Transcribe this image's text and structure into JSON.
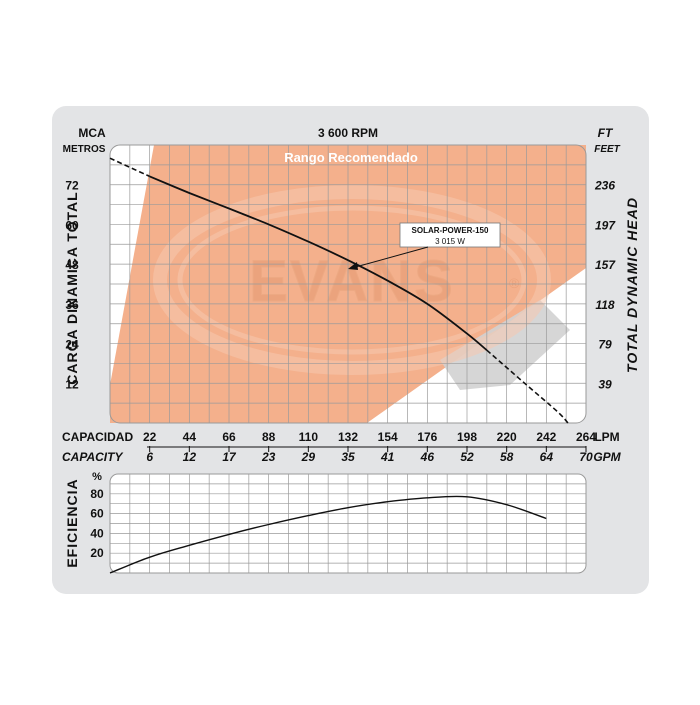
{
  "colors": {
    "panel": "#e3e4e6",
    "grid": "#9a9a9a",
    "recommended": "#f4b08c",
    "curve": "#111111",
    "logo": "#f0a37c"
  },
  "chart_data": [
    {
      "type": "line",
      "title": "3 600 RPM",
      "left_axis_unit": "MCA",
      "left_axis_unit_sub": "METROS",
      "right_axis_unit": "FT",
      "right_axis_unit_sub": "FEET",
      "ylabel_left": "CARGA DINAMICA TOTAL",
      "ylabel_right": "TOTAL DYNAMIC HEAD",
      "xlabel_top": "CAPACIDAD",
      "xlabel_top_unit": "LPM",
      "xlabel_bottom": "CAPACITY",
      "xlabel_bottom_unit": "GPM",
      "region_label": "Rango Recomendado",
      "watermark": "EVANS",
      "xlim": [
        0,
        264
      ],
      "ylim": [
        0,
        84
      ],
      "x_ticks_lpm": [
        "22",
        "44",
        "66",
        "88",
        "110",
        "132",
        "154",
        "176",
        "198",
        "220",
        "242",
        "264"
      ],
      "x_ticks_gpm": [
        "6",
        "12",
        "17",
        "23",
        "29",
        "35",
        "41",
        "46",
        "52",
        "58",
        "64",
        "70"
      ],
      "y_ticks_m": [
        "12",
        "24",
        "36",
        "48",
        "60",
        "72"
      ],
      "y_ticks_ft": [
        "39",
        "79",
        "118",
        "157",
        "197",
        "236"
      ],
      "series": [
        {
          "name": "SOLAR-POWER-150",
          "power_label": "3 015 W",
          "dashed_start": [
            [
              0,
              80
            ],
            [
              22,
              74.5
            ]
          ],
          "solid": [
            [
              22,
              74.5
            ],
            [
              44,
              69.5
            ],
            [
              66,
              64.8
            ],
            [
              88,
              60
            ],
            [
              110,
              54.8
            ],
            [
              132,
              49.2
            ],
            [
              154,
              43
            ],
            [
              176,
              36
            ],
            [
              198,
              27
            ],
            [
              209,
              22
            ]
          ],
          "dashed_end": [
            [
              209,
              22
            ],
            [
              230,
              12
            ],
            [
              248,
              3.5
            ],
            [
              254,
              0
            ]
          ]
        }
      ]
    },
    {
      "type": "line",
      "ylabel": "EFICIENCIA",
      "y_unit": "%",
      "y_ticks": [
        "20",
        "40",
        "60",
        "80"
      ],
      "ylim": [
        0,
        100
      ],
      "xlim": [
        0,
        264
      ],
      "series": [
        {
          "name": "Eficiencia",
          "points": [
            [
              0,
              0
            ],
            [
              22,
              16
            ],
            [
              44,
              28
            ],
            [
              66,
              39
            ],
            [
              88,
              49
            ],
            [
              110,
              58
            ],
            [
              132,
              66
            ],
            [
              154,
              72
            ],
            [
              176,
              76
            ],
            [
              198,
              77
            ],
            [
              220,
              69
            ],
            [
              242,
              55
            ]
          ]
        }
      ]
    }
  ]
}
